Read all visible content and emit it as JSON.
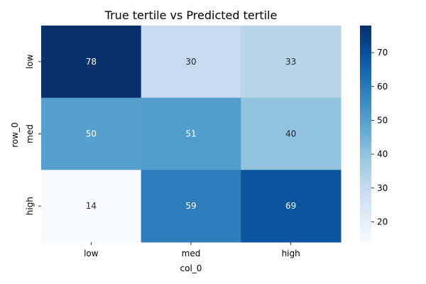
{
  "chart_data": {
    "type": "heatmap",
    "title": "True tertile vs Predicted tertile",
    "xlabel": "col_0",
    "ylabel": "row_0",
    "x_categories": [
      "low",
      "med",
      "high"
    ],
    "y_categories": [
      "low",
      "med",
      "high"
    ],
    "values": [
      [
        78,
        30,
        33
      ],
      [
        50,
        51,
        40
      ],
      [
        14,
        59,
        69
      ]
    ],
    "colormap": "Blues",
    "color_range": [
      14,
      78
    ],
    "colorbar_ticks": [
      20,
      30,
      40,
      50,
      60,
      70
    ],
    "annotations": true
  }
}
